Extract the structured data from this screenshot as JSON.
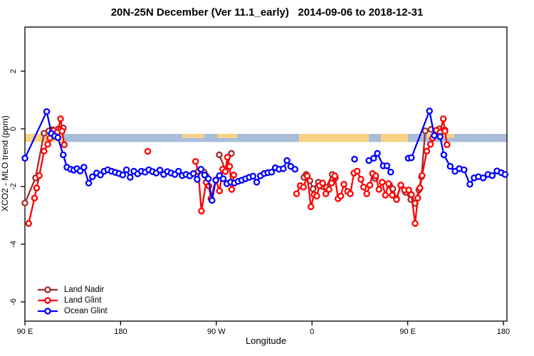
{
  "chart_data": {
    "type": "line",
    "title": "20N-25N December (Ver 11.1_early)   2014-09-06 to 2018-12-31",
    "xlabel": "Longitude",
    "ylabel": "XCO2 - MLO trend (ppm)",
    "x_axis": {
      "note": "longitude axis wraps eastward starting at 90E: 90E,180,90W,0,90E,180; positions are degrees east of 90E",
      "range_deg": [
        0,
        453
      ],
      "ticks": [
        {
          "d": 0,
          "label": "90 E"
        },
        {
          "d": 90,
          "label": "180"
        },
        {
          "d": 180,
          "label": "90 W"
        },
        {
          "d": 270,
          "label": "0"
        },
        {
          "d": 360,
          "label": "90 E"
        },
        {
          "d": 450,
          "label": "180"
        }
      ]
    },
    "y_axis": {
      "ticks": [
        2,
        0,
        -2,
        -4,
        -6
      ],
      "range": [
        -6.7,
        3.5
      ]
    },
    "map_strip": {
      "description": "land/ocean map strip for 20N-25N drawn at about -0.3 ppm",
      "value_top": -0.17,
      "value_bottom": -0.44,
      "ocean_color": "#a9bdd9",
      "land_color": "#f8d285",
      "segments": [
        {
          "start": 0,
          "end": 35.5,
          "type": "land"
        },
        {
          "start": 35.5,
          "end": 148,
          "type": "ocean"
        },
        {
          "start": 148,
          "end": 168.8,
          "type": "mixed"
        },
        {
          "start": 168.8,
          "end": 180.8,
          "type": "ocean"
        },
        {
          "start": 180.8,
          "end": 199.6,
          "type": "mixed"
        },
        {
          "start": 199.6,
          "end": 257.8,
          "type": "ocean"
        },
        {
          "start": 257.8,
          "end": 323.4,
          "type": "land"
        },
        {
          "start": 323.4,
          "end": 334.8,
          "type": "ocean"
        },
        {
          "start": 334.8,
          "end": 360.2,
          "type": "land"
        },
        {
          "start": 360.2,
          "end": 378.3,
          "type": "ocean"
        },
        {
          "start": 378.3,
          "end": 403.8,
          "type": "mixed"
        },
        {
          "start": 403.8,
          "end": 453,
          "type": "ocean"
        }
      ]
    },
    "legend": {
      "position": "bottom-left"
    },
    "series": [
      {
        "name": "Land Nadir",
        "color": "#a02c2c",
        "segments": [
          [
            [
              0,
              -2.57
            ],
            [
              10,
              -1.7
            ],
            [
              18,
              -0.15
            ],
            [
              22.5,
              -0.07
            ],
            [
              26,
              -0.03
            ],
            [
              31.5,
              0.0
            ],
            [
              36,
              0.03
            ]
          ],
          [
            [
              168.5,
              -1.5
            ],
            [
              170.5,
              -1.63
            ]
          ],
          [
            [
              182.8,
              -0.9
            ],
            [
              188.6,
              -1.42
            ],
            [
              194.2,
              -0.85
            ]
          ],
          [
            [
              262.5,
              -1.68
            ],
            [
              264.5,
              -1.58
            ],
            [
              268,
              -1.8
            ],
            [
              271,
              -2.08
            ],
            [
              276,
              -1.85
            ],
            [
              280,
              -2.0
            ],
            [
              283.5,
              -2.03
            ],
            [
              289,
              -1.58
            ],
            [
              292,
              -1.7
            ]
          ],
          [
            [
              329.5,
              -1.72
            ]
          ],
          [
            [
              343,
              -1.95
            ],
            [
              346,
              -2.08
            ],
            [
              349.5,
              -2.42
            ],
            [
              353.5,
              -1.95
            ],
            [
              358,
              -2.2
            ],
            [
              363,
              -2.45
            ],
            [
              367,
              -2.58
            ],
            [
              370.5,
              -2.12
            ],
            [
              373,
              -1.66
            ],
            [
              376.5,
              -0.07
            ],
            [
              382,
              -0.02
            ],
            [
              390,
              0.0
            ],
            [
              395,
              -0.04
            ]
          ]
        ]
      },
      {
        "name": "Land Glint",
        "color": "#ff0000",
        "segments": [
          [
            [
              3.5,
              -3.28
            ],
            [
              9,
              -2.4
            ],
            [
              11,
              -2.05
            ],
            [
              13.5,
              -1.62
            ],
            [
              18,
              -0.77
            ],
            [
              21.5,
              -0.53
            ],
            [
              23.5,
              -0.32
            ],
            [
              27,
              -0.05
            ],
            [
              30.5,
              -0.12
            ],
            [
              33.5,
              0.35
            ],
            [
              35,
              -0.08
            ],
            [
              37,
              -0.55
            ]
          ],
          [
            [
              115.5,
              -0.78
            ]
          ],
          [
            [
              160.5,
              -1.13
            ],
            [
              163,
              -1.48
            ],
            [
              166,
              -2.85
            ],
            [
              170.5,
              -1.85
            ],
            [
              173,
              -1.98
            ],
            [
              175,
              -2.42
            ],
            [
              179.5,
              -1.77
            ],
            [
              183,
              -2.15
            ],
            [
              186,
              -1.4
            ],
            [
              188.5,
              -1.48
            ],
            [
              190.5,
              -0.98
            ],
            [
              192.5,
              -1.3
            ],
            [
              194.5,
              -2.1
            ],
            [
              196.5,
              -1.6
            ]
          ],
          [
            [
              255.5,
              -2.25
            ],
            [
              259,
              -1.97
            ],
            [
              262,
              -2.02
            ],
            [
              265.5,
              -1.63
            ],
            [
              269,
              -2.7
            ],
            [
              272,
              -2.28
            ],
            [
              274.5,
              -2.33
            ],
            [
              277,
              -1.97
            ],
            [
              280,
              -1.88
            ],
            [
              283,
              -2.25
            ],
            [
              286,
              -2.1
            ],
            [
              288.5,
              -1.88
            ],
            [
              291.5,
              -1.63
            ],
            [
              294.5,
              -2.42
            ],
            [
              297,
              -2.33
            ],
            [
              300,
              -1.92
            ],
            [
              303.5,
              -2.17
            ],
            [
              306,
              -2.25
            ],
            [
              309.5,
              -1.53
            ],
            [
              312.5,
              -1.47
            ],
            [
              316,
              -1.75
            ],
            [
              318.5,
              -2.02
            ],
            [
              321.5,
              -2.25
            ],
            [
              324.5,
              -1.95
            ],
            [
              327,
              -1.55
            ],
            [
              330,
              -1.63
            ],
            [
              333,
              -2.1
            ],
            [
              336,
              -1.85
            ],
            [
              339,
              -2.3
            ],
            [
              342,
              -1.9
            ],
            [
              345.5,
              -2.3
            ],
            [
              349.5,
              -2.45
            ],
            [
              353.5,
              -1.95
            ],
            [
              357,
              -2.12
            ],
            [
              361,
              -2.12
            ],
            [
              363.5,
              -2.28
            ],
            [
              367,
              -3.28
            ],
            [
              369.5,
              -2.4
            ],
            [
              371.5,
              -2.05
            ],
            [
              373.5,
              -1.62
            ],
            [
              378,
              -0.77
            ],
            [
              381.5,
              -0.53
            ],
            [
              383.5,
              -0.32
            ],
            [
              387,
              -0.05
            ],
            [
              390.5,
              -0.12
            ],
            [
              393.5,
              0.35
            ],
            [
              395,
              -0.08
            ],
            [
              397,
              -0.55
            ]
          ]
        ]
      },
      {
        "name": "Ocean Glint",
        "color": "#0000ff",
        "segments": [
          [
            [
              0,
              -1.02
            ],
            [
              20.5,
              0.6
            ],
            [
              25,
              -0.16
            ],
            [
              28,
              -0.25
            ],
            [
              31,
              -0.3
            ],
            [
              36,
              -0.9
            ],
            [
              39.5,
              -1.33
            ],
            [
              43,
              -1.4
            ],
            [
              46,
              -1.43
            ],
            [
              49,
              -1.38
            ],
            [
              52,
              -1.46
            ],
            [
              55.5,
              -1.33
            ],
            [
              60,
              -1.88
            ],
            [
              63.5,
              -1.66
            ],
            [
              67.5,
              -1.53
            ],
            [
              71,
              -1.6
            ],
            [
              74.5,
              -1.47
            ],
            [
              78,
              -1.42
            ],
            [
              81.5,
              -1.47
            ],
            [
              85,
              -1.51
            ],
            [
              88.5,
              -1.55
            ],
            [
              92,
              -1.6
            ],
            [
              95.5,
              -1.42
            ],
            [
              99,
              -1.68
            ],
            [
              102.5,
              -1.47
            ],
            [
              106,
              -1.56
            ],
            [
              109.5,
              -1.47
            ],
            [
              113,
              -1.5
            ],
            [
              116.5,
              -1.42
            ],
            [
              120,
              -1.48
            ],
            [
              123.5,
              -1.53
            ],
            [
              127,
              -1.43
            ],
            [
              130.5,
              -1.58
            ],
            [
              134,
              -1.48
            ],
            [
              137.5,
              -1.53
            ],
            [
              141,
              -1.58
            ],
            [
              144.5,
              -1.47
            ],
            [
              148,
              -1.62
            ],
            [
              151.5,
              -1.58
            ],
            [
              155,
              -1.63
            ],
            [
              158.5,
              -1.55
            ],
            [
              162,
              -1.75
            ],
            [
              165.5,
              -1.4
            ],
            [
              169,
              -1.6
            ],
            [
              172.5,
              -1.73
            ],
            [
              176,
              -2.48
            ],
            [
              179.5,
              -1.78
            ],
            [
              183,
              -1.62
            ],
            [
              186.5,
              -1.73
            ],
            [
              190,
              -1.9
            ],
            [
              193.5,
              -1.85
            ],
            [
              197,
              -1.88
            ],
            [
              200.5,
              -1.82
            ],
            [
              204,
              -1.78
            ],
            [
              207.5,
              -1.73
            ],
            [
              211,
              -1.68
            ],
            [
              214.5,
              -1.64
            ],
            [
              218,
              -1.85
            ],
            [
              221.5,
              -1.63
            ],
            [
              225,
              -1.55
            ],
            [
              228.5,
              -1.52
            ],
            [
              232,
              -1.5
            ],
            [
              235.5,
              -1.35
            ],
            [
              239,
              -1.4
            ],
            [
              243,
              -1.38
            ],
            [
              246.5,
              -1.1
            ],
            [
              250,
              -1.3
            ],
            [
              254,
              -1.4
            ]
          ],
          [
            [
              310,
              -1.05
            ]
          ],
          [
            [
              323.5,
              -1.1
            ],
            [
              328,
              -1.02
            ],
            [
              331.5,
              -0.85
            ],
            [
              337,
              -1.28
            ],
            [
              340.5,
              -1.28
            ],
            [
              344,
              -1.5
            ]
          ],
          [
            [
              360.5,
              -1.02
            ],
            [
              363.5,
              -1.0
            ],
            [
              380.5,
              0.62
            ],
            [
              385,
              -0.23
            ],
            [
              390.5,
              -0.27
            ],
            [
              394,
              -0.9
            ],
            [
              400,
              -1.3
            ],
            [
              404.5,
              -1.47
            ],
            [
              408.5,
              -1.38
            ],
            [
              413,
              -1.42
            ],
            [
              418.5,
              -1.92
            ],
            [
              422.5,
              -1.7
            ],
            [
              426.5,
              -1.66
            ],
            [
              431,
              -1.7
            ],
            [
              435.5,
              -1.58
            ],
            [
              439.5,
              -1.62
            ],
            [
              444,
              -1.46
            ],
            [
              448,
              -1.52
            ],
            [
              451.5,
              -1.58
            ]
          ]
        ]
      }
    ]
  }
}
